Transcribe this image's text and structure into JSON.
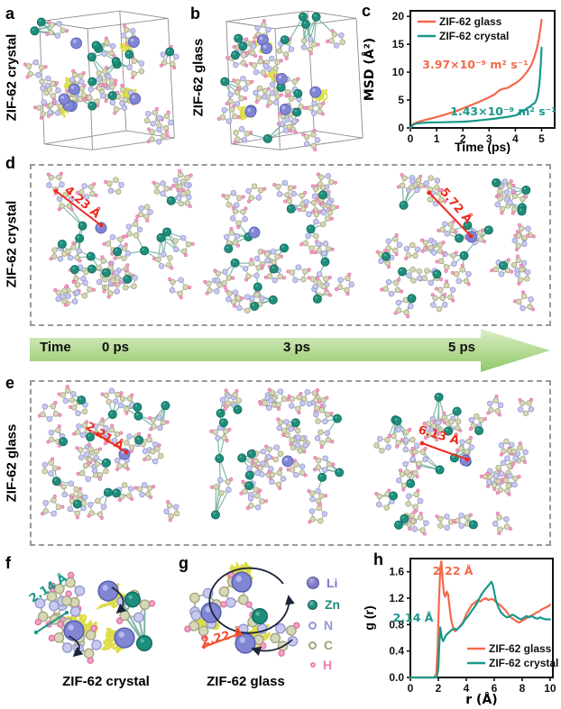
{
  "figure": {
    "panels": {
      "a": {
        "label": "a",
        "side_label": "ZIF-62 crystal"
      },
      "b": {
        "label": "b",
        "side_label": "ZIF-62 glass"
      },
      "c": {
        "label": "c"
      },
      "d": {
        "label": "d",
        "side_label": "ZIF-62 crystal",
        "annotations": {
          "left": "4.23 Å",
          "right": "5.72 Å"
        }
      },
      "e": {
        "label": "e",
        "side_label": "ZIF-62 glass",
        "annotations": {
          "left": "2.21 Å",
          "right": "6.13 Å"
        }
      },
      "f": {
        "label": "f",
        "annotation": "2.14 Å",
        "caption": "ZIF-62 crystal"
      },
      "g": {
        "label": "g",
        "annotation": "2.22 Å",
        "caption": "ZIF-62 glass"
      },
      "h": {
        "label": "h"
      }
    },
    "timeline": {
      "label": "Time",
      "ticks": [
        "0 ps",
        "3 ps",
        "5 ps"
      ]
    },
    "atom_legend": {
      "items": [
        {
          "name": "Li",
          "color": "#7e79ca",
          "solid": true
        },
        {
          "name": "Zn",
          "color": "#1f8d7c",
          "solid": true
        },
        {
          "name": "N",
          "color": "#9298d8",
          "solid": false
        },
        {
          "name": "C",
          "color": "#a2a478",
          "solid": false
        },
        {
          "name": "H",
          "color": "#ee7fb0",
          "solid": false
        }
      ]
    },
    "colors": {
      "glass_series": "#f4694b",
      "crystal_series": "#19988a",
      "annotation_red": "#ee2a1e",
      "arrow_green_light": "#ddeec6",
      "arrow_green_dark": "#8fc868",
      "dashed_border": "#999999"
    }
  },
  "chart_data": [
    {
      "id": "msd",
      "type": "line",
      "title": "",
      "xlabel": "Time (ps)",
      "ylabel": "MSD (Å²)",
      "xlim": [
        0,
        5.5
      ],
      "ylim": [
        0,
        21
      ],
      "xticks": [
        0,
        1,
        2,
        3,
        4,
        5
      ],
      "yticks": [
        0,
        5,
        10,
        15,
        20
      ],
      "grid": false,
      "legend_position": "top-left",
      "series": [
        {
          "name": "ZIF-62 glass",
          "color": "#f4694b",
          "points": [
            [
              0,
              0
            ],
            [
              0.1,
              0.7
            ],
            [
              0.25,
              1.0
            ],
            [
              0.5,
              1.35
            ],
            [
              0.75,
              1.65
            ],
            [
              1,
              1.95
            ],
            [
              1.25,
              2.3
            ],
            [
              1.5,
              2.65
            ],
            [
              1.75,
              3.0
            ],
            [
              2,
              3.5
            ],
            [
              2.25,
              3.95
            ],
            [
              2.5,
              4.45
            ],
            [
              2.75,
              4.95
            ],
            [
              3,
              5.5
            ],
            [
              3.2,
              6.0
            ],
            [
              3.4,
              6.8
            ],
            [
              3.55,
              7.05
            ],
            [
              3.7,
              7.15
            ],
            [
              3.85,
              7.6
            ],
            [
              4,
              8.0
            ],
            [
              4.15,
              8.5
            ],
            [
              4.3,
              9.2
            ],
            [
              4.45,
              10.1
            ],
            [
              4.6,
              11.2
            ],
            [
              4.72,
              12.6
            ],
            [
              4.82,
              14.2
            ],
            [
              4.9,
              16.0
            ],
            [
              4.96,
              18.0
            ],
            [
              5,
              19.4
            ]
          ]
        },
        {
          "name": "ZIF-62 crystal",
          "color": "#19988a",
          "points": [
            [
              0,
              0
            ],
            [
              0.1,
              0.55
            ],
            [
              0.25,
              0.8
            ],
            [
              0.5,
              0.92
            ],
            [
              0.75,
              0.98
            ],
            [
              1,
              1.0
            ],
            [
              1.25,
              1.02
            ],
            [
              1.5,
              1.05
            ],
            [
              1.75,
              1.08
            ],
            [
              2,
              1.12
            ],
            [
              2.25,
              1.2
            ],
            [
              2.5,
              1.3
            ],
            [
              2.75,
              1.42
            ],
            [
              3,
              1.55
            ],
            [
              3.25,
              1.68
            ],
            [
              3.5,
              1.85
            ],
            [
              3.75,
              2.0
            ],
            [
              3.9,
              2.15
            ],
            [
              4.05,
              2.3
            ],
            [
              4.15,
              2.75
            ],
            [
              4.25,
              2.95
            ],
            [
              4.35,
              3.15
            ],
            [
              4.45,
              3.55
            ],
            [
              4.55,
              3.8
            ],
            [
              4.65,
              4.2
            ],
            [
              4.75,
              4.5
            ],
            [
              4.82,
              5.2
            ],
            [
              4.88,
              6.5
            ],
            [
              4.93,
              8.5
            ],
            [
              4.97,
              11.5
            ],
            [
              5,
              14.4
            ]
          ]
        }
      ],
      "annotations": [
        {
          "text": "3.97×10⁻⁹ m² s⁻¹",
          "color": "#f4694b"
        },
        {
          "text": "1.43×10⁻⁹ m² s⁻¹",
          "color": "#19988a"
        }
      ]
    },
    {
      "id": "gr",
      "type": "line",
      "title": "",
      "xlabel": "r (Å)",
      "ylabel": "g (r)",
      "xlim": [
        0,
        10.2
      ],
      "ylim": [
        0,
        1.8
      ],
      "xticks": [
        0,
        2,
        4,
        6,
        8,
        10
      ],
      "yticks": [
        0.0,
        0.4,
        0.8,
        1.2,
        1.6
      ],
      "grid": false,
      "legend_position": "bottom-right",
      "series": [
        {
          "name": "ZIF-62 glass",
          "color": "#f4694b",
          "points": [
            [
              0,
              0
            ],
            [
              1.7,
              0
            ],
            [
              1.85,
              0.05
            ],
            [
              1.95,
              0.45
            ],
            [
              2.05,
              1.2
            ],
            [
              2.15,
              1.68
            ],
            [
              2.22,
              1.76
            ],
            [
              2.3,
              1.5
            ],
            [
              2.4,
              1.27
            ],
            [
              2.5,
              1.22
            ],
            [
              2.6,
              1.3
            ],
            [
              2.7,
              1.26
            ],
            [
              2.8,
              1.07
            ],
            [
              2.9,
              0.9
            ],
            [
              3,
              0.8
            ],
            [
              3.1,
              0.73
            ],
            [
              3.2,
              0.7
            ],
            [
              3.4,
              0.74
            ],
            [
              3.6,
              0.79
            ],
            [
              3.8,
              0.85
            ],
            [
              4,
              0.96
            ],
            [
              4.2,
              1.03
            ],
            [
              4.4,
              1.1
            ],
            [
              4.6,
              1.13
            ],
            [
              4.8,
              1.17
            ],
            [
              5,
              1.15
            ],
            [
              5.2,
              1.18
            ],
            [
              5.4,
              1.2
            ],
            [
              5.6,
              1.17
            ],
            [
              5.8,
              1.19
            ],
            [
              6,
              1.17
            ],
            [
              6.2,
              1.13
            ],
            [
              6.4,
              1.1
            ],
            [
              6.6,
              1.06
            ],
            [
              6.8,
              1.02
            ],
            [
              7,
              0.96
            ],
            [
              7.2,
              0.91
            ],
            [
              7.4,
              0.88
            ],
            [
              7.6,
              0.85
            ],
            [
              7.8,
              0.83
            ],
            [
              8,
              0.86
            ],
            [
              8.2,
              0.88
            ],
            [
              8.4,
              0.91
            ],
            [
              8.6,
              0.93
            ],
            [
              8.8,
              0.95
            ],
            [
              9,
              0.98
            ],
            [
              9.2,
              1.0
            ],
            [
              9.4,
              1.03
            ],
            [
              9.6,
              1.05
            ],
            [
              9.8,
              1.07
            ],
            [
              10,
              1.1
            ]
          ]
        },
        {
          "name": "ZIF-62 crystal",
          "color": "#19988a",
          "points": [
            [
              0,
              0
            ],
            [
              1.9,
              0
            ],
            [
              2.0,
              0.15
            ],
            [
              2.07,
              0.5
            ],
            [
              2.14,
              0.76
            ],
            [
              2.25,
              0.6
            ],
            [
              2.35,
              0.55
            ],
            [
              2.45,
              0.6
            ],
            [
              2.55,
              0.64
            ],
            [
              2.7,
              0.67
            ],
            [
              2.85,
              0.7
            ],
            [
              3,
              0.73
            ],
            [
              3.15,
              0.74
            ],
            [
              3.3,
              0.72
            ],
            [
              3.5,
              0.76
            ],
            [
              3.7,
              0.8
            ],
            [
              3.9,
              0.87
            ],
            [
              4.1,
              0.92
            ],
            [
              4.3,
              0.98
            ],
            [
              4.5,
              1.04
            ],
            [
              4.7,
              1.1
            ],
            [
              4.9,
              1.18
            ],
            [
              5.1,
              1.26
            ],
            [
              5.3,
              1.32
            ],
            [
              5.5,
              1.37
            ],
            [
              5.7,
              1.42
            ],
            [
              5.8,
              1.45
            ],
            [
              5.9,
              1.4
            ],
            [
              6,
              1.3
            ],
            [
              6.1,
              1.18
            ],
            [
              6.3,
              1.06
            ],
            [
              6.5,
              0.98
            ],
            [
              6.7,
              0.94
            ],
            [
              6.9,
              0.91
            ],
            [
              7.1,
              0.92
            ],
            [
              7.3,
              0.95
            ],
            [
              7.5,
              0.93
            ],
            [
              7.7,
              0.9
            ],
            [
              7.9,
              0.88
            ],
            [
              8.1,
              0.9
            ],
            [
              8.3,
              0.93
            ],
            [
              8.5,
              0.91
            ],
            [
              8.7,
              0.93
            ],
            [
              8.9,
              0.9
            ],
            [
              9.1,
              0.89
            ],
            [
              9.3,
              0.91
            ],
            [
              9.5,
              0.89
            ],
            [
              9.7,
              0.88
            ],
            [
              10,
              0.88
            ]
          ]
        }
      ],
      "annotations": [
        {
          "text": "2.22 Å",
          "color": "#f4694b"
        },
        {
          "text": "2.14 Å",
          "color": "#19988a"
        }
      ]
    }
  ]
}
